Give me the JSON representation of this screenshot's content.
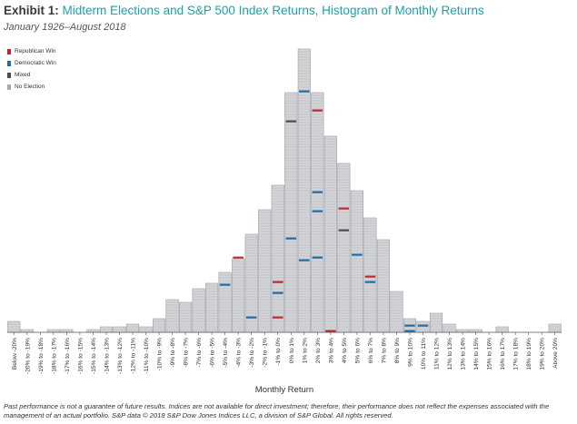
{
  "header": {
    "exhibit": "Exhibit 1:",
    "title": "Midterm Elections and S&P 500 Index Returns, Histogram of Monthly Returns",
    "subtitle": "January 1926–August 2018"
  },
  "legend": [
    {
      "label": "Republican Win",
      "color": "#c0272d"
    },
    {
      "label": "Democratic Win",
      "color": "#1a6ea8"
    },
    {
      "label": "Mixed",
      "color": "#4a4a5a"
    },
    {
      "label": "No Election",
      "color": "#a8a8a8"
    }
  ],
  "chart_data": {
    "type": "bar",
    "title": "",
    "xlabel": "Monthly Return",
    "ylabel": "",
    "ylim": [
      0,
      105
    ],
    "grid": false,
    "legend_position": "top-left",
    "categories": [
      "Below -20%",
      "-20% to -19%",
      "-19% to -18%",
      "-18% to -17%",
      "-17% to -16%",
      "-16% to -15%",
      "-15% to -14%",
      "-14% to -13%",
      "-13% to -12%",
      "-12% to -11%",
      "-11% to -10%",
      "-10% to -9%",
      "-9% to -8%",
      "-8% to -7%",
      "-7% to -6%",
      "-6% to -5%",
      "-5% to -4%",
      "-4% to -3%",
      "-3% to -2%",
      "-2% to -1%",
      "-1% to 0%",
      "0% to 1%",
      "1% to 2%",
      "2% to 3%",
      "3% to 4%",
      "4% to 5%",
      "5% to 6%",
      "6% to 7%",
      "7% to 8%",
      "8% to 9%",
      "9% to 10%",
      "10% to 11%",
      "11% to 12%",
      "12% to 13%",
      "13% to 14%",
      "14% to 15%",
      "15% to 16%",
      "16% to 17%",
      "17% to 18%",
      "18% to 19%",
      "19% to 20%",
      "Above 20%"
    ],
    "values": [
      4,
      1,
      0,
      1,
      1,
      0,
      1,
      2,
      2,
      3,
      2,
      5,
      12,
      11,
      16,
      18,
      22,
      27,
      36,
      45,
      54,
      88,
      104,
      88,
      72,
      62,
      52,
      42,
      34,
      15,
      5,
      4,
      7,
      3,
      1,
      1,
      0,
      2,
      0,
      0,
      0,
      3
    ],
    "series": [
      {
        "name": "Republican Win",
        "color": "#c0272d",
        "points": [
          [
            17,
            27
          ],
          [
            20,
            18
          ],
          [
            20,
            5
          ],
          [
            23,
            81
          ],
          [
            24,
            0
          ],
          [
            25,
            45
          ],
          [
            27,
            20
          ]
        ]
      },
      {
        "name": "Democratic Win",
        "color": "#1a6ea8",
        "points": [
          [
            16,
            17
          ],
          [
            18,
            5
          ],
          [
            20,
            14
          ],
          [
            21,
            34
          ],
          [
            22,
            88
          ],
          [
            22,
            26
          ],
          [
            23,
            51
          ],
          [
            23,
            44
          ],
          [
            23,
            27
          ],
          [
            26,
            28
          ],
          [
            27,
            18
          ],
          [
            30,
            2
          ],
          [
            30,
            0
          ],
          [
            31,
            2
          ]
        ]
      },
      {
        "name": "Mixed",
        "color": "#4a4a5a",
        "points": [
          [
            21,
            77
          ],
          [
            25,
            37
          ]
        ]
      }
    ]
  },
  "footnote": "Past performance is not a guarantee of future results. Indices are not available for direct investment; therefore, their performance does not reflect the expenses associated with the management of an actual portfolio. S&P data © 2018 S&P Dow Jones Indices LLC, a division of S&P Global. All rights reserved."
}
